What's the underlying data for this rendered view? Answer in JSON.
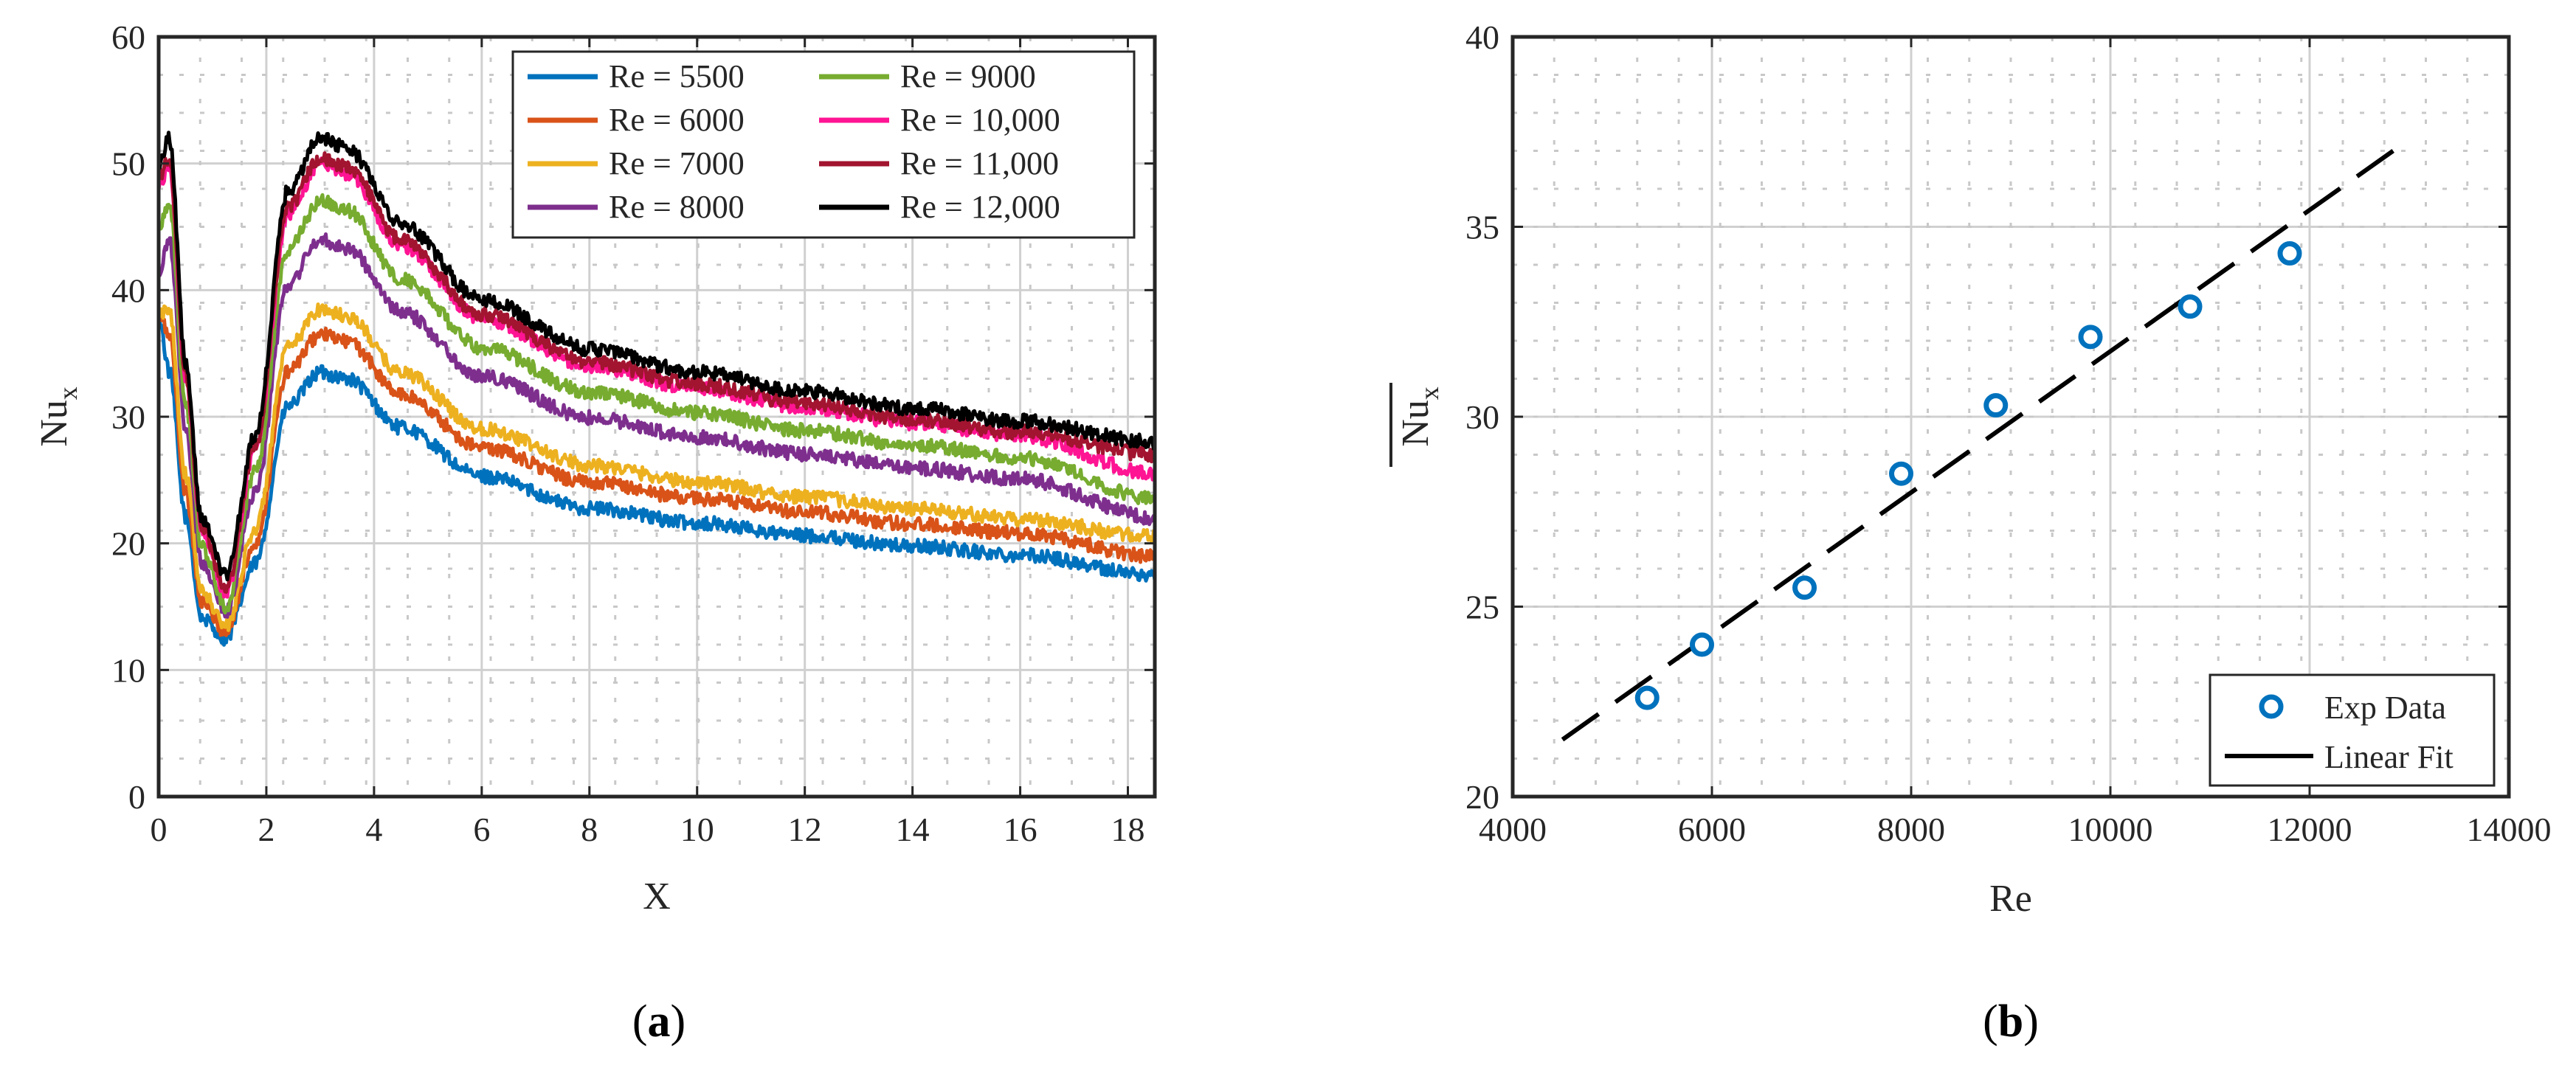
{
  "chart_data": [
    {
      "type": "line",
      "panel_label": "a",
      "xlabel": "X",
      "ylabel": "Nu",
      "ylabel_sub": "x",
      "xlim": [
        0,
        18.5
      ],
      "ylim": [
        0,
        60
      ],
      "xticks": [
        0,
        2,
        4,
        6,
        8,
        10,
        12,
        14,
        16,
        18
      ],
      "yticks": [
        0,
        10,
        20,
        30,
        40,
        50,
        60
      ],
      "grid": true,
      "legend_position": "top-right",
      "model": {
        "x_anchors": [
          0,
          0.2,
          0.5,
          0.8,
          1.25,
          1.8,
          2.4,
          3.0,
          3.5,
          4.5,
          6,
          8,
          10,
          12,
          14,
          16,
          18.5
        ],
        "base_shape": [
          1.45,
          1.0,
          0.66,
          0.42,
          0.37,
          0.55,
          0.92,
          1.0,
          0.985,
          0.87,
          0.755,
          0.68,
          0.645,
          0.615,
          0.59,
          0.57,
          0.54
        ]
      },
      "series": [
        {
          "name": "Re = 5500",
          "color": "#0072BD",
          "peak": 33.5,
          "minimum": 12.5,
          "start": 38,
          "end": 17.5
        },
        {
          "name": "Re = 6000",
          "color": "#D95319",
          "peak": 36.5,
          "minimum": 13.0,
          "start": 38,
          "end": 19.0
        },
        {
          "name": "Re = 7000",
          "color": "#EDB120",
          "peak": 38.5,
          "minimum": 13.5,
          "start": 38,
          "end": 20.5
        },
        {
          "name": "Re = 8000",
          "color": "#7E2F8E",
          "peak": 44.0,
          "minimum": 14.5,
          "start": 41,
          "end": 22.0
        },
        {
          "name": "Re = 9000",
          "color": "#77AC30",
          "peak": 47.0,
          "minimum": 15.0,
          "start": 45,
          "end": 23.5
        },
        {
          "name": "Re = 10,000",
          "color": "#FF1493",
          "peak": 50.0,
          "minimum": 16.0,
          "start": 48,
          "end": 25.5
        },
        {
          "name": "Re = 11,000",
          "color": "#A2142F",
          "peak": 50.5,
          "minimum": 16.5,
          "start": 49,
          "end": 27.0
        },
        {
          "name": "Re = 12,000",
          "color": "#000000",
          "peak": 52.0,
          "minimum": 17.5,
          "start": 50,
          "end": 28.0
        }
      ]
    },
    {
      "type": "scatter",
      "panel_label": "b",
      "xlabel": "Re",
      "ylabel": "Nu",
      "ylabel_sub": "x",
      "xlim": [
        4000,
        14000
      ],
      "ylim": [
        20,
        40
      ],
      "xticks": [
        4000,
        6000,
        8000,
        10000,
        12000,
        14000
      ],
      "yticks": [
        20,
        25,
        30,
        35,
        40
      ],
      "grid": true,
      "legend_position": "bottom-right",
      "series": [
        {
          "name": "Exp Data",
          "color": "#0072BD",
          "x": [
            5350,
            5900,
            6930,
            7900,
            8850,
            9800,
            10800,
            11800
          ],
          "y": [
            22.6,
            24.0,
            25.5,
            28.5,
            30.3,
            32.1,
            32.9,
            34.3
          ]
        },
        {
          "name": "Linear Fit",
          "color": "#000000",
          "x": [
            4500,
            13000
          ],
          "y": [
            21.5,
            37.3
          ]
        }
      ]
    }
  ]
}
